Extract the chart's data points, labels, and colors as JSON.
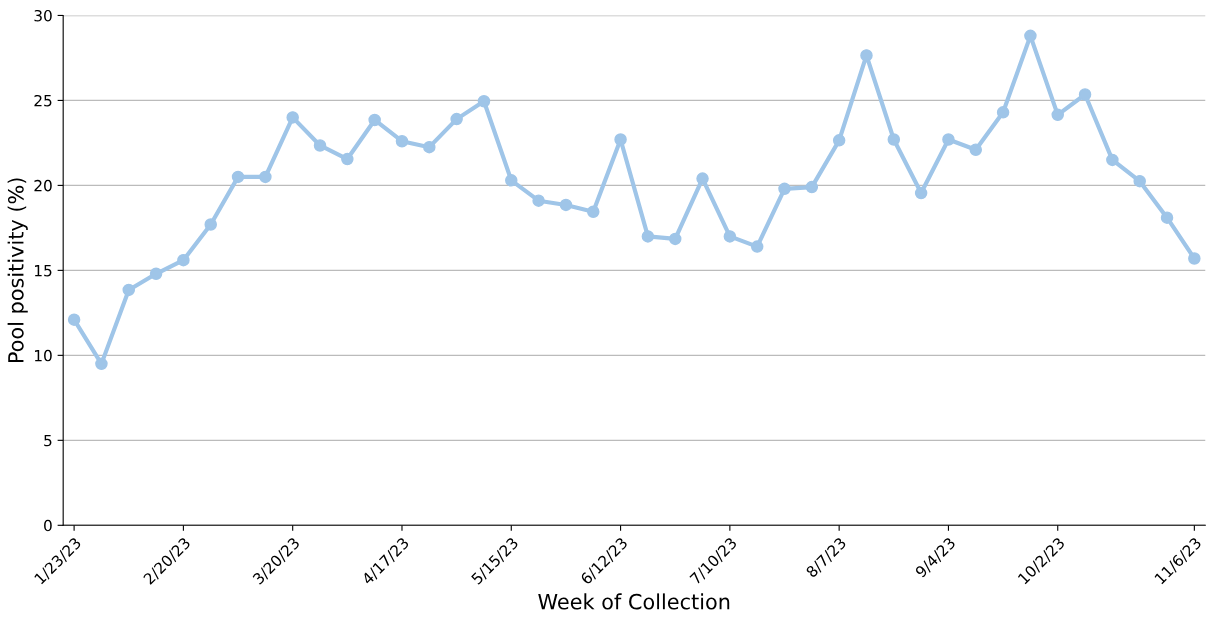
{
  "chart_data": {
    "type": "line",
    "xlabel": "Week of Collection",
    "ylabel": "Pool positivity (%)",
    "categories": [
      "1/23/23",
      null,
      null,
      null,
      "2/20/23",
      null,
      null,
      null,
      "3/20/23",
      null,
      null,
      null,
      "4/17/23",
      null,
      null,
      null,
      "5/15/23",
      null,
      null,
      null,
      "6/12/23",
      null,
      null,
      null,
      "7/10/23",
      null,
      null,
      null,
      "8/7/23",
      null,
      null,
      null,
      "9/4/23",
      null,
      null,
      null,
      "10/2/23",
      null,
      null,
      null,
      null,
      "11/6/23"
    ],
    "series": [
      {
        "color": "#9fc5e8",
        "values": [
          12.1,
          9.5,
          13.85,
          14.8,
          15.6,
          17.7,
          20.5,
          20.5,
          24.0,
          22.35,
          21.55,
          23.85,
          22.6,
          22.25,
          23.9,
          24.95,
          20.3,
          19.1,
          18.85,
          18.45,
          22.7,
          17.0,
          16.85,
          20.4,
          17.0,
          16.4,
          19.8,
          19.9,
          22.65,
          27.65,
          22.7,
          19.55,
          22.7,
          22.1,
          24.3,
          28.8,
          24.15,
          25.35,
          21.5,
          20.25,
          18.1,
          15.7
        ]
      }
    ],
    "ylim": [
      0,
      30
    ],
    "yticks": [
      0,
      5,
      10,
      15,
      20,
      25,
      30
    ],
    "grid": "y",
    "marker": "circle",
    "line_style": "solid"
  }
}
